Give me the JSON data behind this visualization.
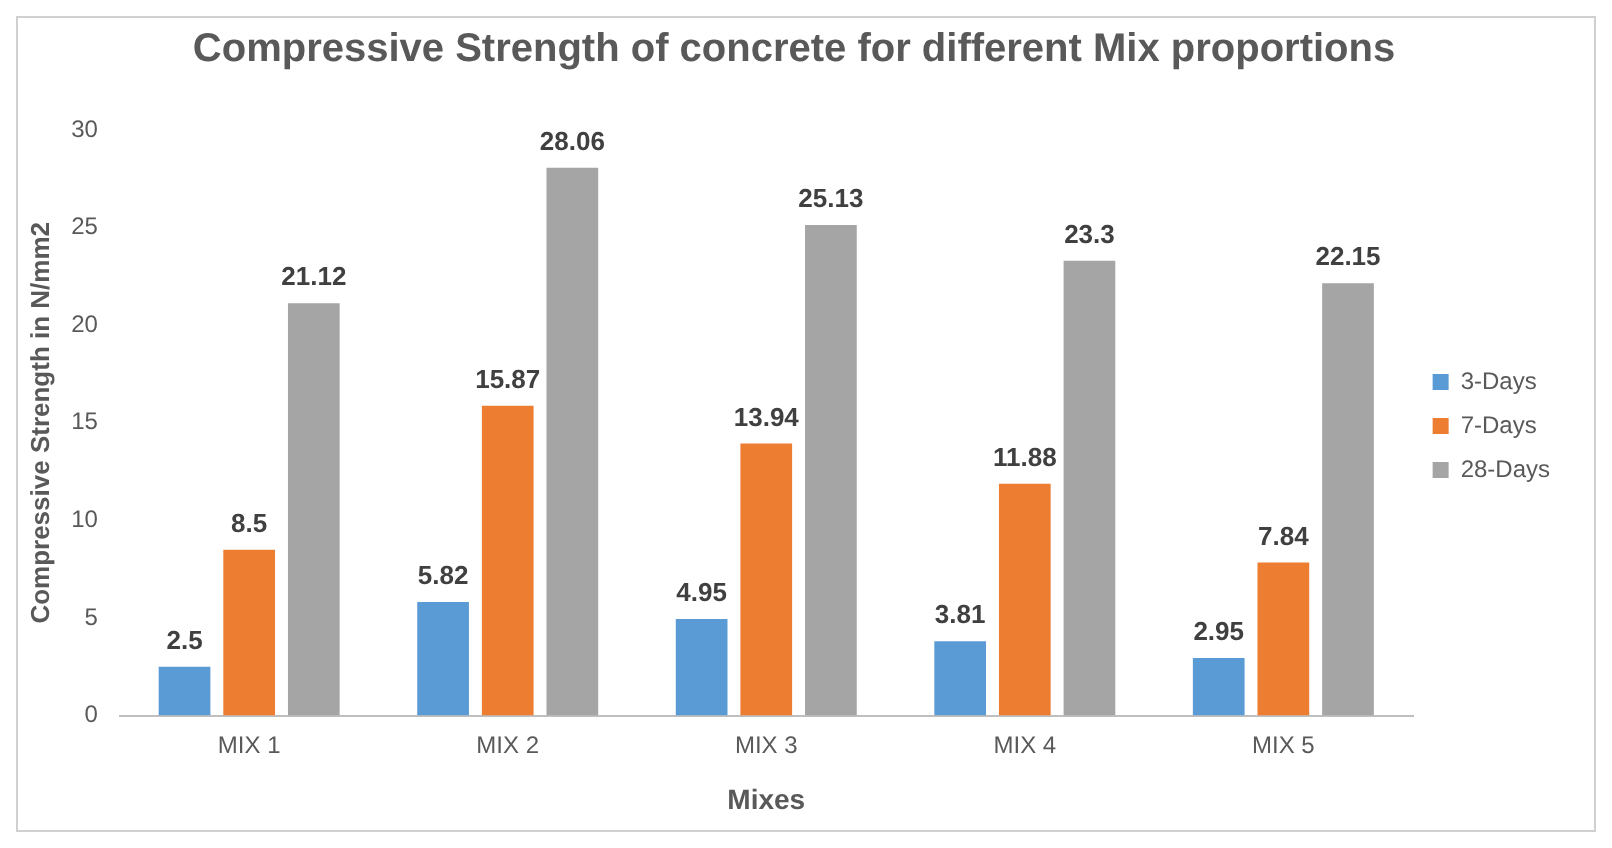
{
  "chart_data": {
    "type": "bar",
    "title": "Compressive Strength of concrete for different Mix proportions",
    "xlabel": "Mixes",
    "ylabel": "Compressive Strength in N/mm2",
    "categories": [
      "MIX 1",
      "MIX 2",
      "MIX 3",
      "MIX 4",
      "MIX 5"
    ],
    "series": [
      {
        "name": "3-Days",
        "color": "#5b9bd5",
        "values": [
          2.5,
          5.82,
          4.95,
          3.81,
          2.95
        ]
      },
      {
        "name": "7-Days",
        "color": "#ed7d31",
        "values": [
          8.5,
          15.87,
          13.94,
          11.88,
          7.84
        ]
      },
      {
        "name": "28-Days",
        "color": "#a5a5a5",
        "values": [
          21.12,
          28.06,
          25.13,
          23.3,
          22.15
        ]
      }
    ],
    "ylim": [
      0,
      30
    ],
    "yticks": [
      0,
      5,
      10,
      15,
      20,
      25,
      30
    ],
    "grid": false,
    "legend": "right",
    "data_labels": true
  }
}
